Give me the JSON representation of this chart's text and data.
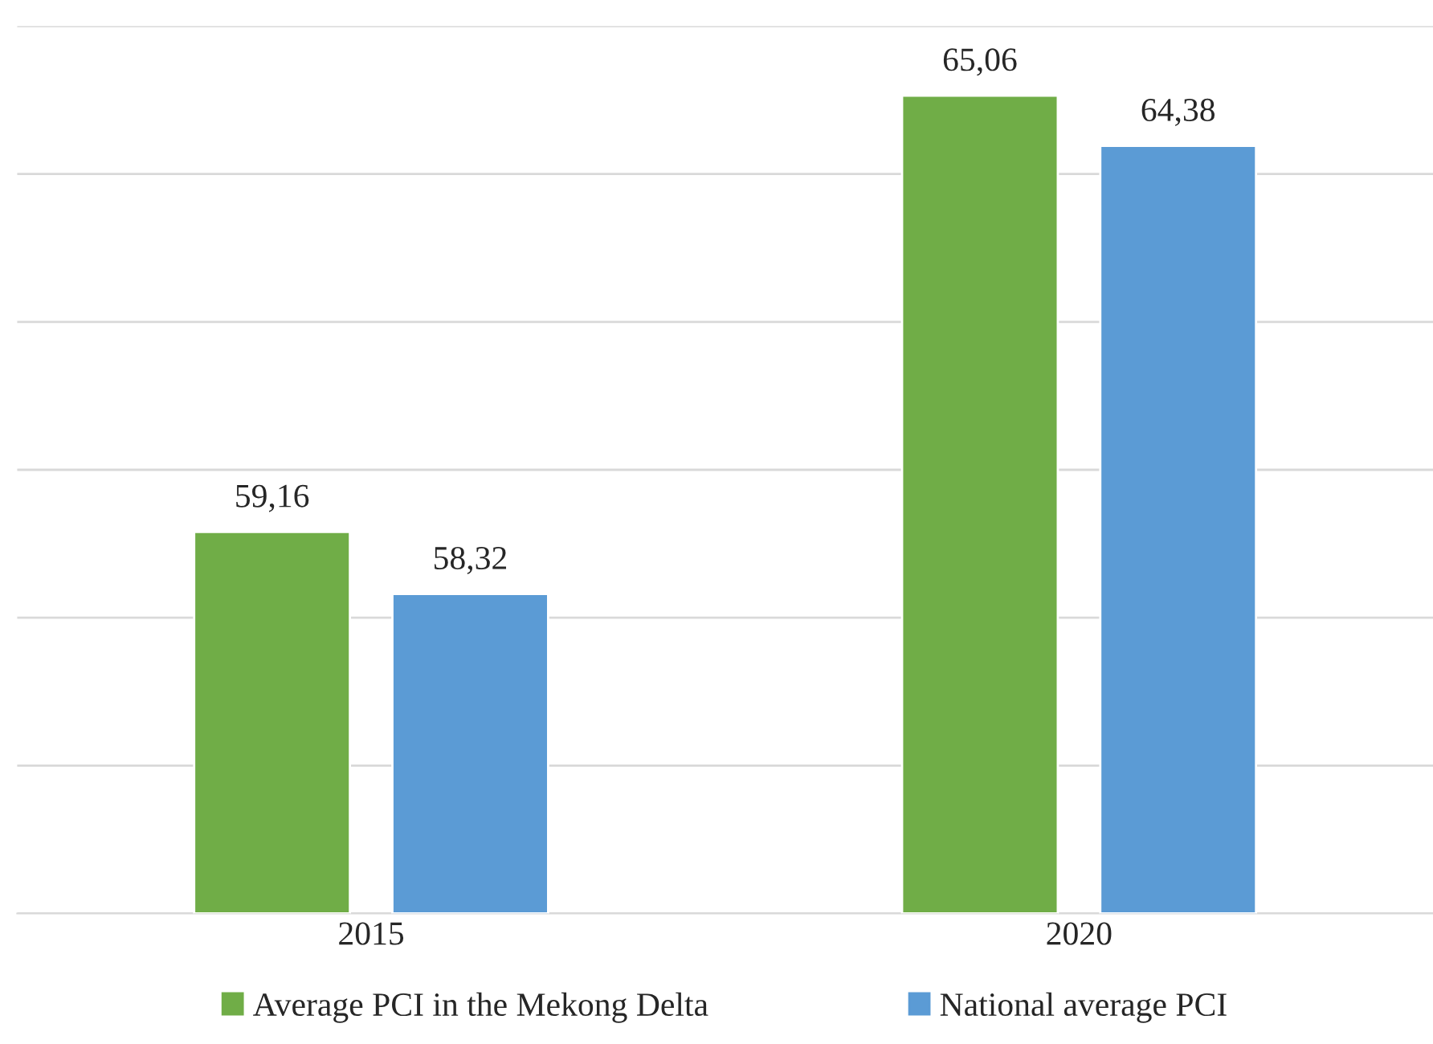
{
  "chart_data": {
    "type": "bar",
    "categories": [
      "2015",
      "2020"
    ],
    "series": [
      {
        "name": "Average PCI in the Mekong Delta",
        "color": "#70ad47",
        "values": [
          59.16,
          65.06
        ],
        "value_labels": [
          "59,16",
          "65,06"
        ]
      },
      {
        "name": "National average PCI",
        "color": "#5b9bd5",
        "values": [
          58.32,
          64.38
        ],
        "value_labels": [
          "58,32",
          "64,38"
        ]
      }
    ],
    "ylim": [
      54,
      66
    ],
    "yticks": [
      {
        "value": 54,
        "label": null
      },
      {
        "value": 56,
        "label": null
      },
      {
        "value": 58,
        "label": null
      },
      {
        "value": 60,
        "label": null
      },
      {
        "value": 62,
        "label": null
      },
      {
        "value": 64,
        "label": null
      },
      {
        "value": 66,
        "label": null
      }
    ],
    "tick_labels": "x",
    "grid": "y",
    "legend": "bottom"
  }
}
